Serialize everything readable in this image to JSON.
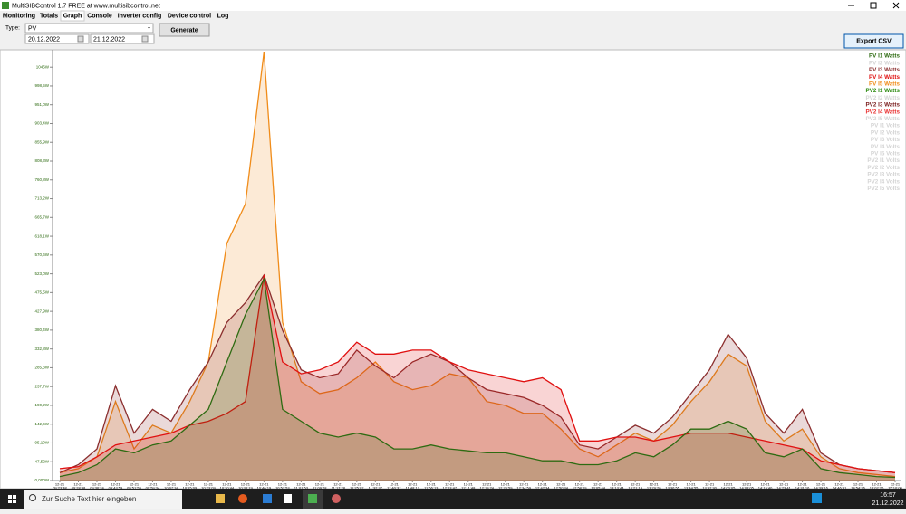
{
  "window": {
    "title": "MultiSIBControl 1.7 FREE at www.multisibcontrol.net"
  },
  "menu": [
    "Monitoring",
    "Totals",
    "Graph",
    "Console",
    "Inverter config",
    "Device control",
    "Log"
  ],
  "controls": {
    "type_label": "Type:",
    "type_value": "PV",
    "date_from": "20.12.2022",
    "date_to": "21.12.2022",
    "generate": "Generate",
    "export": "Export CSV"
  },
  "chart": {
    "type": "area",
    "ylim": [
      0,
      1090
    ],
    "yticks": [
      {
        "value": 0,
        "label": "0,000W"
      },
      {
        "value": 47.52,
        "label": "47,52W"
      },
      {
        "value": 95.1,
        "label": "95,10W"
      },
      {
        "value": 142.6,
        "label": "142,6W"
      },
      {
        "value": 190.2,
        "label": "190,2W"
      },
      {
        "value": 237.7,
        "label": "237,7W"
      },
      {
        "value": 285.3,
        "label": "285,3W"
      },
      {
        "value": 332.8,
        "label": "332,8W"
      },
      {
        "value": 380.4,
        "label": "380,4W"
      },
      {
        "value": 427.9,
        "label": "427,9W"
      },
      {
        "value": 475.5,
        "label": "475,5W"
      },
      {
        "value": 523,
        "label": "523,0W"
      },
      {
        "value": 570.6,
        "label": "570,6W"
      },
      {
        "value": 618.1,
        "label": "618,1W"
      },
      {
        "value": 665.7,
        "label": "665,7W"
      },
      {
        "value": 713.2,
        "label": "713,2W"
      },
      {
        "value": 760.8,
        "label": "760,8W"
      },
      {
        "value": 808.3,
        "label": "808,3W"
      },
      {
        "value": 855.9,
        "label": "855,9W"
      },
      {
        "value": 903.4,
        "label": "903,4W"
      },
      {
        "value": 951,
        "label": "951,0W"
      },
      {
        "value": 998.5,
        "label": "998,5W"
      },
      {
        "value": 1046,
        "label": "1046W"
      }
    ],
    "x": [
      [
        "12-21",
        "09:23:48"
      ],
      [
        "12-21",
        "09:28:48"
      ],
      [
        "12-21",
        "09:36:24"
      ],
      [
        "12-21",
        "09:43:59"
      ],
      [
        "12-21",
        "09:51:59"
      ],
      [
        "12-21",
        "09:59:34"
      ],
      [
        "12-21",
        "10:07:34"
      ],
      [
        "12-21",
        "10:15:09"
      ],
      [
        "12-21",
        "10:23:09"
      ],
      [
        "12-21",
        "10:30:44"
      ],
      [
        "12-21",
        "10:38:19"
      ],
      [
        "12-21",
        "10:46:19"
      ],
      [
        "12-21",
        "10:53:53"
      ],
      [
        "12-21",
        "11:01:53"
      ],
      [
        "12-21",
        "11:09:28"
      ],
      [
        "12-21",
        "11:17:28"
      ],
      [
        "12-21",
        "11:25:02"
      ],
      [
        "12-21",
        "11:32:37"
      ],
      [
        "12-21",
        "11:40:37"
      ],
      [
        "12-21",
        "11:48:12"
      ],
      [
        "12-21",
        "11:56:13"
      ],
      [
        "12-21",
        "12:03:47"
      ],
      [
        "12-21",
        "12:11:48"
      ],
      [
        "12-21",
        "12:19:24"
      ],
      [
        "12-21",
        "12:26:59"
      ],
      [
        "12-21",
        "12:34:59"
      ],
      [
        "12-21",
        "12:42:34"
      ],
      [
        "12-21",
        "12:50:34"
      ],
      [
        "12-21",
        "12:58:09"
      ],
      [
        "12-21",
        "13:05:44"
      ],
      [
        "12-21",
        "13:13:44"
      ],
      [
        "12-21",
        "13:21:19"
      ],
      [
        "12-21",
        "13:29:20"
      ],
      [
        "12-21",
        "13:36:55"
      ],
      [
        "12-21",
        "13:44:55"
      ],
      [
        "12-21",
        "13:52:30"
      ],
      [
        "12-21",
        "14:00:05"
      ],
      [
        "12-21",
        "14:08:05"
      ],
      [
        "12-21",
        "14:15:40"
      ],
      [
        "12-21",
        "14:23:41"
      ],
      [
        "12-21",
        "14:31:16"
      ],
      [
        "12-21",
        "14:39:16"
      ],
      [
        "12-21",
        "14:46:51"
      ],
      [
        "12-21",
        "14:54:26"
      ],
      [
        "12-21",
        "15:02:26"
      ],
      [
        "12-21",
        "15:10:00"
      ]
    ],
    "series": [
      {
        "name": "PV I1 Watts",
        "color": "#2e6b12",
        "values": [
          10,
          20,
          40,
          80,
          70,
          90,
          100,
          140,
          180,
          300,
          420,
          510,
          180,
          150,
          120,
          110,
          120,
          110,
          80,
          80,
          90,
          80,
          75,
          70,
          70,
          60,
          50,
          50,
          40,
          40,
          50,
          70,
          60,
          90,
          130,
          130,
          150,
          130,
          70,
          60,
          80,
          30,
          20,
          15,
          10,
          8
        ]
      },
      {
        "name": "PV I2 Watts",
        "color": "#d4d4d4"
      },
      {
        "name": "PV I3 Watts",
        "color": "#8b2e2e",
        "values": [
          20,
          40,
          80,
          240,
          120,
          180,
          150,
          230,
          300,
          400,
          450,
          520,
          380,
          280,
          260,
          270,
          330,
          290,
          260,
          300,
          320,
          300,
          260,
          230,
          220,
          210,
          190,
          160,
          90,
          80,
          110,
          140,
          120,
          160,
          220,
          280,
          370,
          310,
          170,
          120,
          180,
          70,
          40,
          30,
          25,
          20
        ]
      },
      {
        "name": "PV I4 Watts",
        "color": "#e01010",
        "values": [
          30,
          35,
          60,
          90,
          100,
          110,
          120,
          140,
          150,
          170,
          200,
          520,
          300,
          270,
          280,
          300,
          350,
          320,
          320,
          330,
          330,
          300,
          280,
          270,
          260,
          250,
          260,
          230,
          100,
          100,
          110,
          110,
          100,
          110,
          120,
          120,
          120,
          110,
          100,
          90,
          80,
          50,
          40,
          30,
          25,
          20
        ]
      },
      {
        "name": "PV I5 Watts",
        "color": "#f08c1a",
        "values": [
          20,
          30,
          60,
          200,
          80,
          140,
          120,
          200,
          300,
          600,
          700,
          1085,
          400,
          250,
          220,
          230,
          260,
          300,
          250,
          230,
          240,
          270,
          260,
          200,
          190,
          170,
          170,
          130,
          80,
          60,
          90,
          120,
          100,
          140,
          200,
          250,
          320,
          290,
          150,
          100,
          130,
          60,
          30,
          20,
          15,
          10
        ]
      },
      {
        "name": "PV2 I1 Watts",
        "color": "#2e8b12"
      },
      {
        "name": "PV2 I2 Watts",
        "color": "#d4d4d4"
      },
      {
        "name": "PV2 I3 Watts",
        "color": "#7a1e1e"
      },
      {
        "name": "PV2 I4 Watts",
        "color": "#e83030"
      },
      {
        "name": "PV2 I5 Watts",
        "color": "#d4d4d4"
      },
      {
        "name": "PV I1 Volts",
        "color": "#d4d4d4"
      },
      {
        "name": "PV I2 Volts",
        "color": "#d4d4d4"
      },
      {
        "name": "PV I3 Volts",
        "color": "#d4d4d4"
      },
      {
        "name": "PV I4 Volts",
        "color": "#d4d4d4"
      },
      {
        "name": "PV I5 Volts",
        "color": "#d4d4d4"
      },
      {
        "name": "PV2 I1 Volts",
        "color": "#d4d4d4"
      },
      {
        "name": "PV2 I2 Volts",
        "color": "#d4d4d4"
      },
      {
        "name": "PV2 I3 Volts",
        "color": "#d4d4d4"
      },
      {
        "name": "PV2 I4 Volts",
        "color": "#d4d4d4"
      },
      {
        "name": "PV2 I5 Volts",
        "color": "#d4d4d4"
      }
    ]
  },
  "taskbar": {
    "search": "Zur Suche Text hier eingeben",
    "time": "16:57",
    "date": "21.12.2022"
  }
}
